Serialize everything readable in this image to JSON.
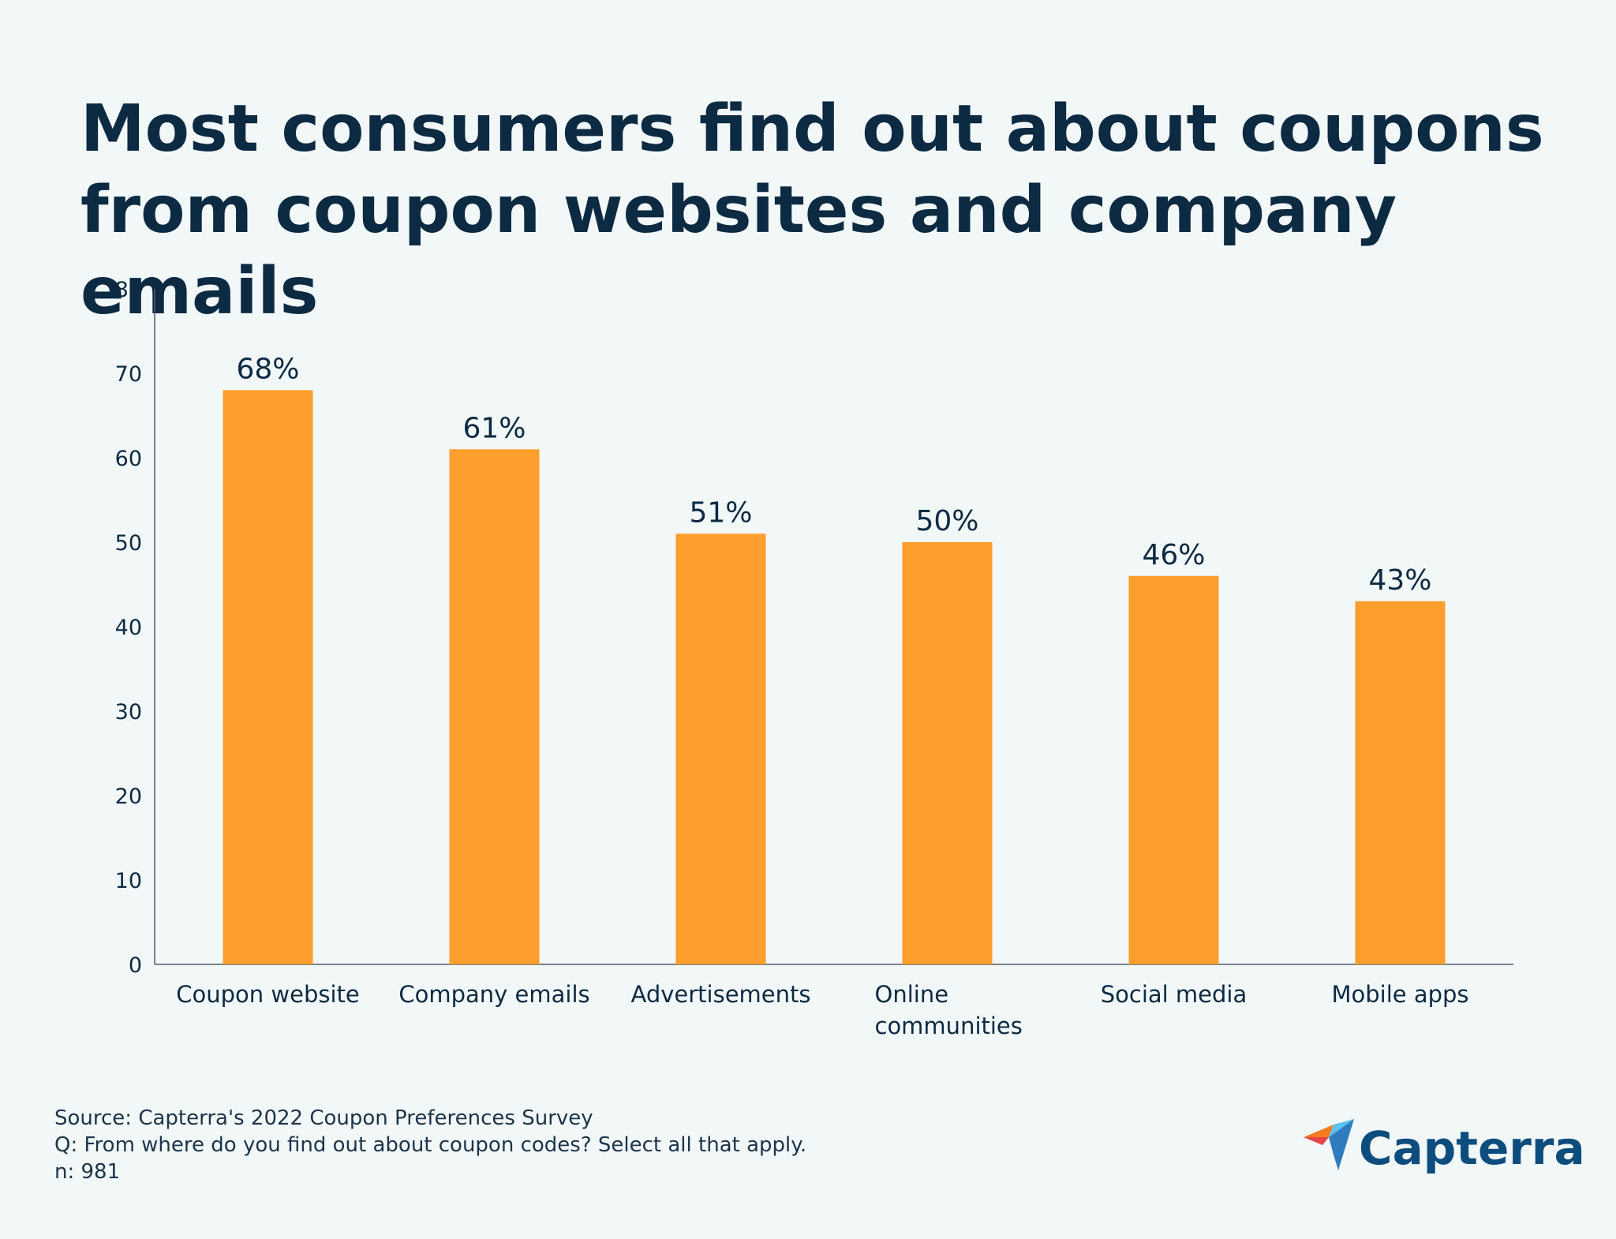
{
  "title": {
    "line1": "Most consumers find out about coupons",
    "line2": "from coupon websites and company emails"
  },
  "colors": {
    "background": "#f2f7f8",
    "bar": "#fe9e2c",
    "text": "#0c2a42",
    "axis": "#555b60",
    "brand": "#0d4d7e",
    "logo_orange": "#f57c20",
    "logo_red": "#e8444c",
    "logo_blue": "#2f7bbf",
    "logo_lightblue": "#5cc2ec",
    "logo_navy": "#1b3a5c"
  },
  "chart_data": {
    "type": "bar",
    "categories": [
      "Coupon website",
      "Company emails",
      "Advertisements",
      "Online\ncommunities",
      "Social media",
      "Mobile apps"
    ],
    "values": [
      68,
      61,
      51,
      50,
      46,
      43
    ],
    "data_labels": [
      "68%",
      "61%",
      "51%",
      "50%",
      "46%",
      "43%"
    ],
    "title": "Most consumers find out about coupons from coupon websites and company emails",
    "xlabel": "",
    "ylabel": "",
    "ylim": [
      0,
      80
    ],
    "yticks": [
      0,
      10,
      20,
      30,
      40,
      50,
      60,
      70,
      80
    ],
    "grid": false,
    "legend": "none"
  },
  "footer": {
    "source": "Source: Capterra's 2022 Coupon Preferences Survey",
    "question": "Q: From where do you find out about coupon codes? Select all that apply.",
    "n": "n: 981"
  },
  "brand": {
    "name": "Capterra",
    "logo_icon": "capterra-arrow-icon"
  }
}
